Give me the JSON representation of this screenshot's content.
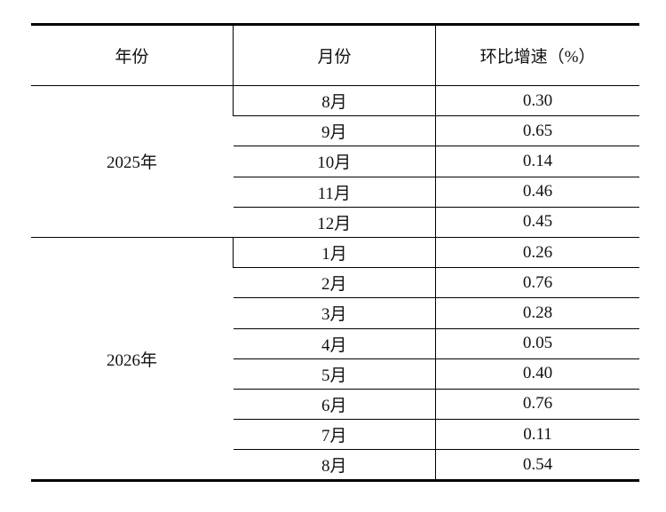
{
  "table": {
    "header": [
      "年份",
      "月份",
      "环比增速（%）"
    ],
    "groups": [
      {
        "year": "2025年",
        "rows": [
          [
            "8月",
            "0.30"
          ],
          [
            "9月",
            "0.65"
          ],
          [
            "10月",
            "0.14"
          ],
          [
            "11月",
            "0.46"
          ],
          [
            "12月",
            "0.45"
          ]
        ]
      },
      {
        "year": "2026年",
        "rows": [
          [
            "1月",
            "0.26"
          ],
          [
            "2月",
            "0.76"
          ],
          [
            "3月",
            "0.28"
          ],
          [
            "4月",
            "0.05"
          ],
          [
            "5月",
            "0.40"
          ],
          [
            "6月",
            "0.76"
          ],
          [
            "7月",
            "0.11"
          ],
          [
            "8月",
            "0.54"
          ]
        ]
      }
    ]
  }
}
